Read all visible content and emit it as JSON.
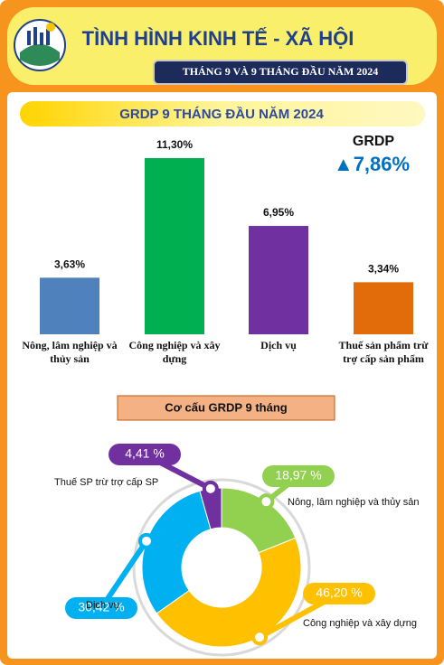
{
  "header": {
    "title": "TÌNH HÌNH KINH TẾ - XÃ HỘI",
    "subtitle": "THÁNG 9 VÀ 9 THÁNG ĐẦU NĂM 2024"
  },
  "chart_data": [
    {
      "type": "bar",
      "title": "GRDP 9 THÁNG ĐẦU NĂM 2024",
      "annotation": {
        "label": "GRDP",
        "value": "▲7,86%"
      },
      "categories": [
        "Nông, lâm nghiệp và thủy sản",
        "Công nghiệp và xây dựng",
        "Dịch vụ",
        "Thuế sản phẩm trừ trợ cấp sản phẩm"
      ],
      "values": [
        3.63,
        11.3,
        6.95,
        3.34
      ],
      "value_labels": [
        "3,63%",
        "11,30%",
        "6,95%",
        "3,34%"
      ],
      "colors": [
        "#4f81bd",
        "#00b050",
        "#7030a0",
        "#e36c0a"
      ]
    },
    {
      "type": "donut",
      "title": "Cơ cấu GRDP 9 tháng",
      "categories": [
        "Nông, lâm nghiệp và thủy sản",
        "Công nghiệp và xây dựng",
        "Dịch vụ",
        "Thuế SP trừ trợ cấp SP"
      ],
      "values": [
        18.97,
        46.2,
        30.42,
        4.41
      ],
      "value_labels": [
        "18,97 %",
        "46,20 %",
        "30,42 %",
        "4,41 %"
      ],
      "colors": [
        "#92d050",
        "#ffc000",
        "#00b0f0",
        "#7030a0"
      ]
    }
  ]
}
